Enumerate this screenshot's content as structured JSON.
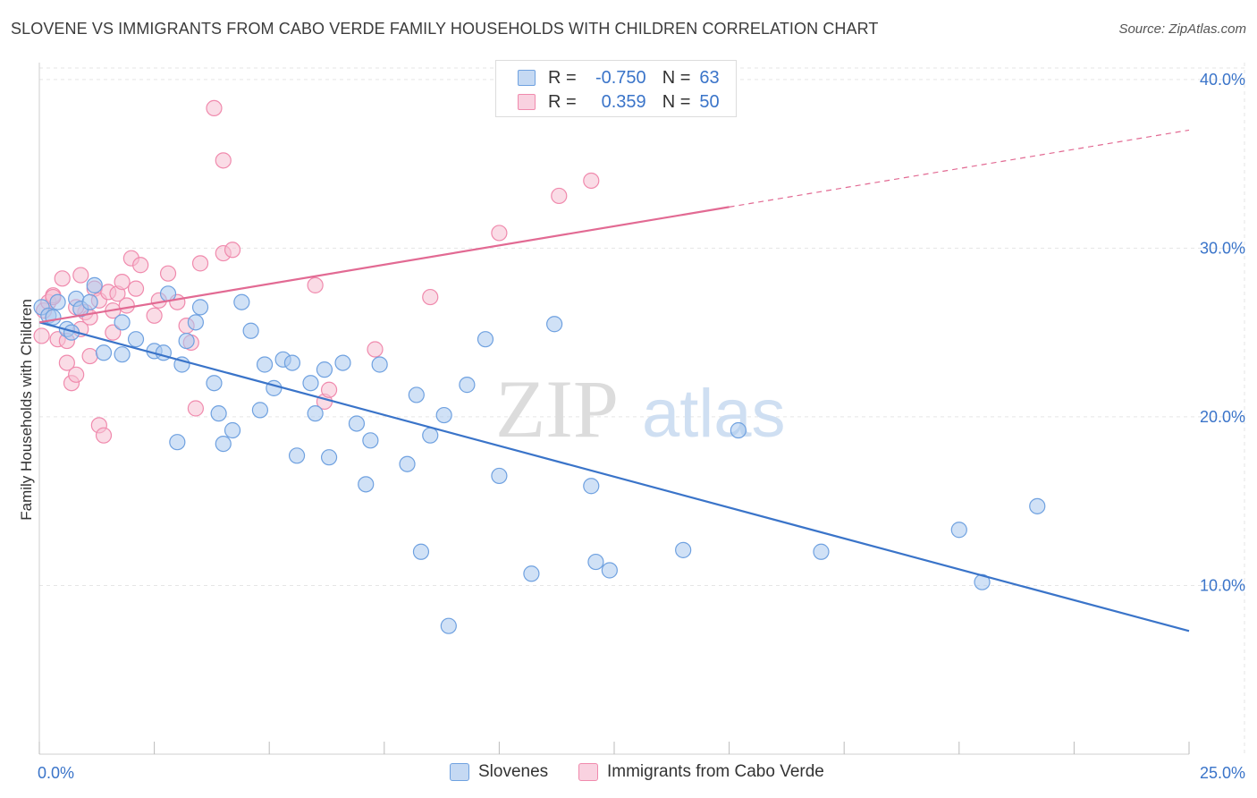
{
  "title": "SLOVENE VS IMMIGRANTS FROM CABO VERDE FAMILY HOUSEHOLDS WITH CHILDREN CORRELATION CHART",
  "source": "Source: ZipAtlas.com",
  "watermark": {
    "zip": "ZIP",
    "atlas": "atlas"
  },
  "legend": {
    "rows": [
      {
        "r_label": "R =",
        "r_value": "-0.750",
        "n_label": "N =",
        "n_value": "63",
        "color": "#6fa1e0"
      },
      {
        "r_label": "R =",
        "r_value": "0.359",
        "n_label": "N =",
        "n_value": "50",
        "color": "#f08aad"
      }
    ]
  },
  "bottom_legend": {
    "series1": "Slovenes",
    "series2": "Immigrants from Cabo Verde"
  },
  "colors": {
    "blue": "#3a74c9",
    "blue_fill": "#aac8ee",
    "pink": "#e26a93",
    "pink_fill": "#f6bfd1",
    "grid": "#e5e5e5"
  },
  "chart_data": {
    "type": "scatter",
    "title": "SLOVENE VS IMMIGRANTS FROM CABO VERDE FAMILY HOUSEHOLDS WITH CHILDREN CORRELATION CHART",
    "xlabel": "",
    "ylabel": "Family Households with Children",
    "xlim": [
      0,
      25
    ],
    "ylim": [
      0,
      41
    ],
    "x_tick_labels": [
      "0.0%",
      "25.0%"
    ],
    "y_ticks": [
      10,
      20,
      30,
      40
    ],
    "y_tick_labels": [
      "10.0%",
      "20.0%",
      "30.0%",
      "40.0%"
    ],
    "grid": true,
    "series": [
      {
        "name": "Slovenes",
        "r": -0.75,
        "n": 63,
        "trend": {
          "x": [
            0,
            25
          ],
          "y": [
            25.6,
            7.3
          ],
          "dashed_from": null
        },
        "points": [
          [
            0.05,
            26.5
          ],
          [
            0.2,
            26.0
          ],
          [
            0.4,
            26.8
          ],
          [
            0.6,
            25.2
          ],
          [
            0.8,
            27.0
          ],
          [
            0.9,
            26.4
          ],
          [
            1.1,
            26.8
          ],
          [
            1.2,
            27.8
          ],
          [
            0.7,
            25.0
          ],
          [
            1.4,
            23.8
          ],
          [
            1.8,
            23.7
          ],
          [
            1.8,
            25.6
          ],
          [
            2.1,
            24.6
          ],
          [
            2.5,
            23.9
          ],
          [
            2.7,
            23.8
          ],
          [
            2.8,
            27.3
          ],
          [
            3.1,
            23.1
          ],
          [
            3.2,
            24.5
          ],
          [
            3.4,
            25.6
          ],
          [
            3.5,
            26.5
          ],
          [
            3.8,
            22.0
          ],
          [
            3.9,
            20.2
          ],
          [
            4.0,
            18.4
          ],
          [
            4.2,
            19.2
          ],
          [
            4.4,
            26.8
          ],
          [
            4.6,
            25.1
          ],
          [
            4.8,
            20.4
          ],
          [
            4.9,
            23.1
          ],
          [
            5.1,
            21.7
          ],
          [
            5.3,
            23.4
          ],
          [
            5.5,
            23.2
          ],
          [
            5.6,
            17.7
          ],
          [
            5.9,
            22.0
          ],
          [
            6.0,
            20.2
          ],
          [
            6.2,
            22.8
          ],
          [
            6.3,
            17.6
          ],
          [
            6.6,
            23.2
          ],
          [
            6.9,
            19.6
          ],
          [
            7.1,
            16.0
          ],
          [
            7.2,
            18.6
          ],
          [
            7.4,
            23.1
          ],
          [
            8.0,
            17.2
          ],
          [
            8.2,
            21.3
          ],
          [
            8.3,
            12.0
          ],
          [
            8.5,
            18.9
          ],
          [
            8.8,
            20.1
          ],
          [
            8.9,
            7.6
          ],
          [
            9.3,
            21.9
          ],
          [
            9.7,
            24.6
          ],
          [
            10.0,
            16.5
          ],
          [
            10.7,
            10.7
          ],
          [
            11.2,
            25.5
          ],
          [
            12.0,
            15.9
          ],
          [
            12.1,
            11.4
          ],
          [
            12.4,
            10.9
          ],
          [
            14.0,
            12.1
          ],
          [
            15.2,
            19.2
          ],
          [
            17.0,
            12.0
          ],
          [
            20.0,
            13.3
          ],
          [
            20.5,
            10.2
          ],
          [
            21.7,
            14.7
          ],
          [
            0.3,
            25.9
          ],
          [
            3.0,
            18.5
          ]
        ]
      },
      {
        "name": "Immigrants from Cabo Verde",
        "r": 0.359,
        "n": 50,
        "trend": {
          "x": [
            0,
            25
          ],
          "y": [
            25.6,
            37.0
          ],
          "dashed_from": 15.0
        },
        "points": [
          [
            0.05,
            24.8
          ],
          [
            0.1,
            26.3
          ],
          [
            0.2,
            26.8
          ],
          [
            0.3,
            27.2
          ],
          [
            0.4,
            24.6
          ],
          [
            0.5,
            28.2
          ],
          [
            0.6,
            23.2
          ],
          [
            0.6,
            24.5
          ],
          [
            0.7,
            22.0
          ],
          [
            0.8,
            22.5
          ],
          [
            0.9,
            28.4
          ],
          [
            0.9,
            25.2
          ],
          [
            1.0,
            26.2
          ],
          [
            1.1,
            23.6
          ],
          [
            1.2,
            27.6
          ],
          [
            1.3,
            26.9
          ],
          [
            1.3,
            19.5
          ],
          [
            1.4,
            18.9
          ],
          [
            1.5,
            27.4
          ],
          [
            1.6,
            26.3
          ],
          [
            1.7,
            27.3
          ],
          [
            1.8,
            28.0
          ],
          [
            1.9,
            26.6
          ],
          [
            2.0,
            29.4
          ],
          [
            2.1,
            27.6
          ],
          [
            2.2,
            29.0
          ],
          [
            2.5,
            26.0
          ],
          [
            2.8,
            28.5
          ],
          [
            3.0,
            26.8
          ],
          [
            3.2,
            25.4
          ],
          [
            3.4,
            20.5
          ],
          [
            3.5,
            29.1
          ],
          [
            3.8,
            38.3
          ],
          [
            4.0,
            35.2
          ],
          [
            4.0,
            29.7
          ],
          [
            4.2,
            29.9
          ],
          [
            6.0,
            27.8
          ],
          [
            6.2,
            20.9
          ],
          [
            6.3,
            21.6
          ],
          [
            7.3,
            24.0
          ],
          [
            8.5,
            27.1
          ],
          [
            10.0,
            30.9
          ],
          [
            11.3,
            33.1
          ],
          [
            12.0,
            34.0
          ],
          [
            0.3,
            27.1
          ],
          [
            1.1,
            25.9
          ],
          [
            2.6,
            26.9
          ],
          [
            0.8,
            26.5
          ],
          [
            1.6,
            25.0
          ],
          [
            3.3,
            24.4
          ]
        ]
      }
    ]
  }
}
